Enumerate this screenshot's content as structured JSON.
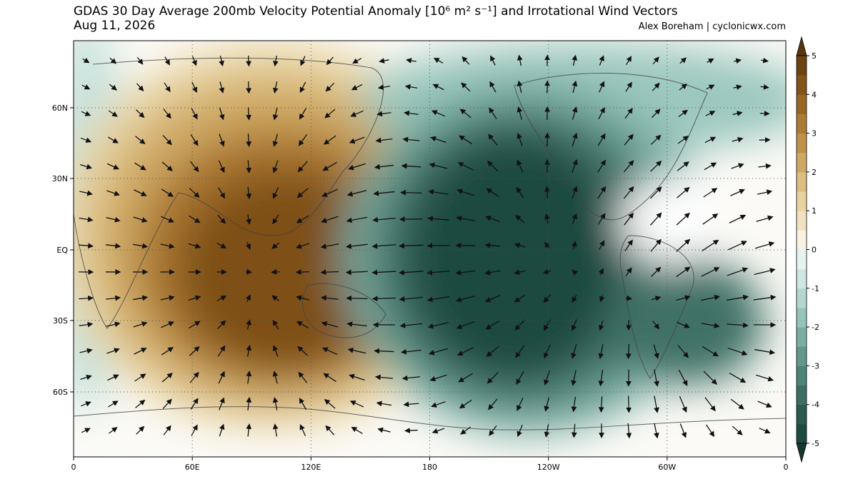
{
  "header": {
    "title": "GDAS 30 Day Average 200mb Velocity Potential Anomaly [10⁶ m² s⁻¹] and Irrotational Wind Vectors",
    "date": "Aug 11, 2026",
    "credit": "Alex Boreham | cyclonicwx.com"
  },
  "map": {
    "lat_labels": [
      "60N",
      "30N",
      "EQ",
      "30S",
      "60S"
    ],
    "lon_labels": [
      "0",
      "60E",
      "120E",
      "180",
      "120W",
      "60W",
      "0"
    ]
  },
  "colorbar": {
    "range": [
      -5,
      5
    ],
    "ticks": [
      5,
      4,
      3,
      2,
      1,
      0,
      -1,
      -2,
      -3,
      -4,
      -5
    ],
    "colors": [
      "#1f4a40",
      "#2a5a50",
      "#3b6e64",
      "#4d8479",
      "#62988e",
      "#7aaea4",
      "#96c4bb",
      "#b3d7d0",
      "#cfe7e2",
      "#e6f3f0",
      "#f8f2e2",
      "#f0e2c0",
      "#e8d3a0",
      "#dcbf80",
      "#cfa964",
      "#c0924a",
      "#ad7c34",
      "#996624",
      "#835318",
      "#6e4312"
    ],
    "under_color": "#17382f",
    "over_color": "#5a3610"
  }
}
